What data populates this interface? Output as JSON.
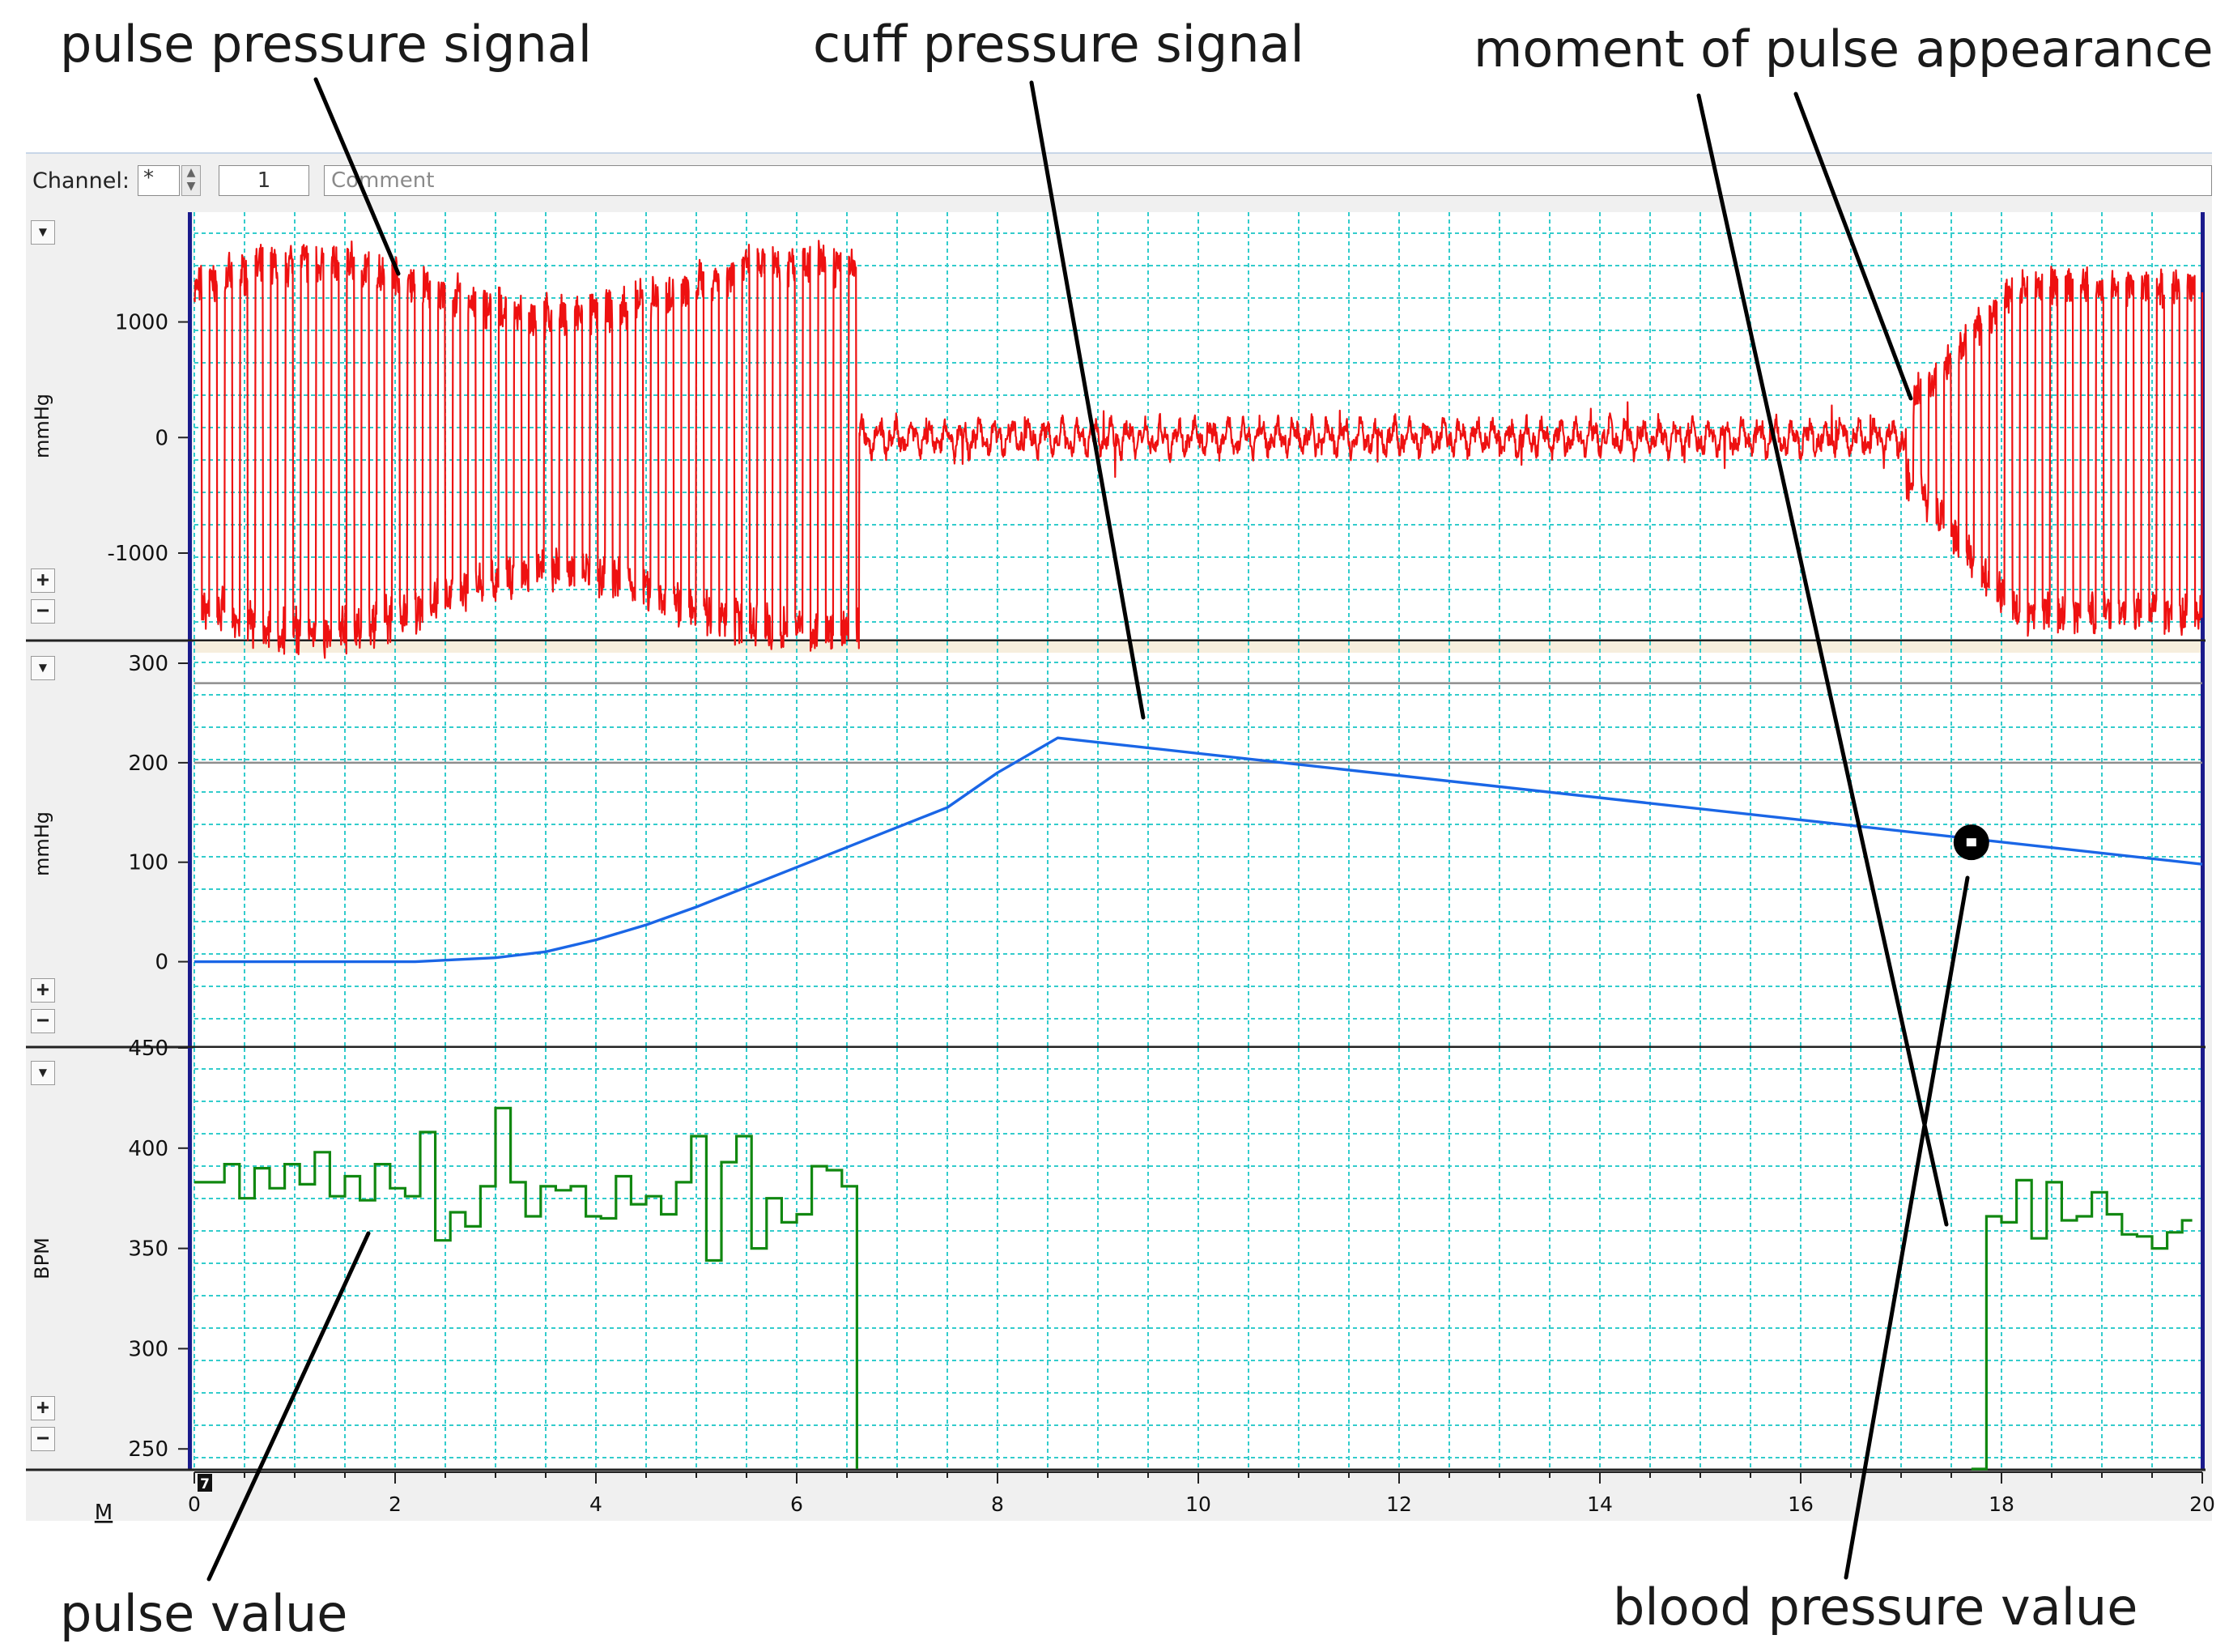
{
  "annotations": {
    "pulse_pressure_signal": "pulse pressure signal",
    "cuff_pressure_signal": "cuff pressure signal",
    "moment_of_pulse_appearance": "moment of pulse appearance",
    "pulse_value": "pulse value",
    "blood_pressure_value": "blood pressure value"
  },
  "toolbar": {
    "channel_label": "Channel:",
    "channel_value": "*",
    "count_value": "1",
    "comment_placeholder": "Comment"
  },
  "panel_controls": {
    "dropdown": "▾",
    "zoom_in": "+",
    "zoom_out": "−"
  },
  "colors": {
    "grid": "#33cccc",
    "pulse_pressure": "#ee1111",
    "cuff_pressure": "#1a66e6",
    "pulse_value": "#118811",
    "annotation_lines": "#000000",
    "axis_bar": "#1a1a8c"
  },
  "time_marker": "7",
  "bottom_axis_label": "M",
  "chart_data": [
    {
      "type": "line",
      "series": [
        {
          "values": "pulse pressure waveform (red), oscillating ±1500 mmHg during 0–6.6 s and 17.0–20 s, ±150 mmHg between"
        }
      ],
      "ylabel": "mmHg",
      "yticks": [
        1000,
        0,
        -1000
      ],
      "ylim": [
        -1750,
        1950
      ],
      "xlim": [
        0,
        20
      ],
      "grid": true
    },
    {
      "type": "line",
      "ylabel": "mmHg",
      "yticks": [
        300,
        200,
        100,
        0
      ],
      "ylim": [
        -85,
        322
      ],
      "xlim": [
        0,
        20
      ],
      "reference_lines": [
        280,
        200
      ],
      "grid": true,
      "series": [
        {
          "x": [
            0,
            2.2,
            2.6,
            3.0,
            3.5,
            4.0,
            4.5,
            5.0,
            5.5,
            6.0,
            6.5,
            7.0,
            7.5,
            8.0,
            8.6,
            20
          ],
          "y": [
            0,
            0,
            2,
            4,
            10,
            22,
            37,
            55,
            75,
            95,
            115,
            135,
            155,
            190,
            225,
            98
          ]
        }
      ],
      "point": {
        "x": 17.7,
        "y": 120
      }
    },
    {
      "type": "line",
      "ylabel": "BPM",
      "yticks": [
        450,
        400,
        350,
        300,
        250
      ],
      "ylim": [
        240,
        450
      ],
      "xlabel": "",
      "xticks": [
        0,
        2,
        4,
        6,
        8,
        10,
        12,
        14,
        16,
        18,
        20
      ],
      "xlim": [
        0,
        20
      ],
      "grid": true,
      "series": [
        {
          "x": [
            0.0,
            0.3,
            0.45,
            0.6,
            0.75,
            0.9,
            1.05,
            1.2,
            1.35,
            1.5,
            1.65,
            1.8,
            1.95,
            2.1,
            2.25,
            2.4,
            2.55,
            2.7,
            2.85,
            3.0,
            3.15,
            3.3,
            3.45,
            3.6,
            3.75,
            3.9,
            4.05,
            4.2,
            4.35,
            4.5,
            4.65,
            4.8,
            4.95,
            5.1,
            5.25,
            5.4,
            5.55,
            5.7,
            5.85,
            6.0,
            6.15,
            6.3,
            6.45,
            6.6
          ],
          "y": [
            383,
            392,
            375,
            390,
            380,
            392,
            382,
            398,
            376,
            386,
            374,
            392,
            380,
            376,
            408,
            354,
            368,
            361,
            381,
            420,
            383,
            366,
            381,
            379,
            381,
            366,
            365,
            386,
            372,
            376,
            367,
            383,
            406,
            344,
            393,
            406,
            350,
            375,
            363,
            367,
            391,
            389,
            381,
            240
          ]
        },
        {
          "x": [
            17.7,
            17.85,
            18.0,
            18.15,
            18.3,
            18.45,
            18.6,
            18.75,
            18.9,
            19.05,
            19.2,
            19.35,
            19.5,
            19.65,
            19.8,
            19.9
          ],
          "y": [
            240,
            366,
            363,
            384,
            355,
            383,
            364,
            366,
            378,
            367,
            357,
            356,
            350,
            358,
            364,
            364
          ]
        }
      ]
    }
  ]
}
